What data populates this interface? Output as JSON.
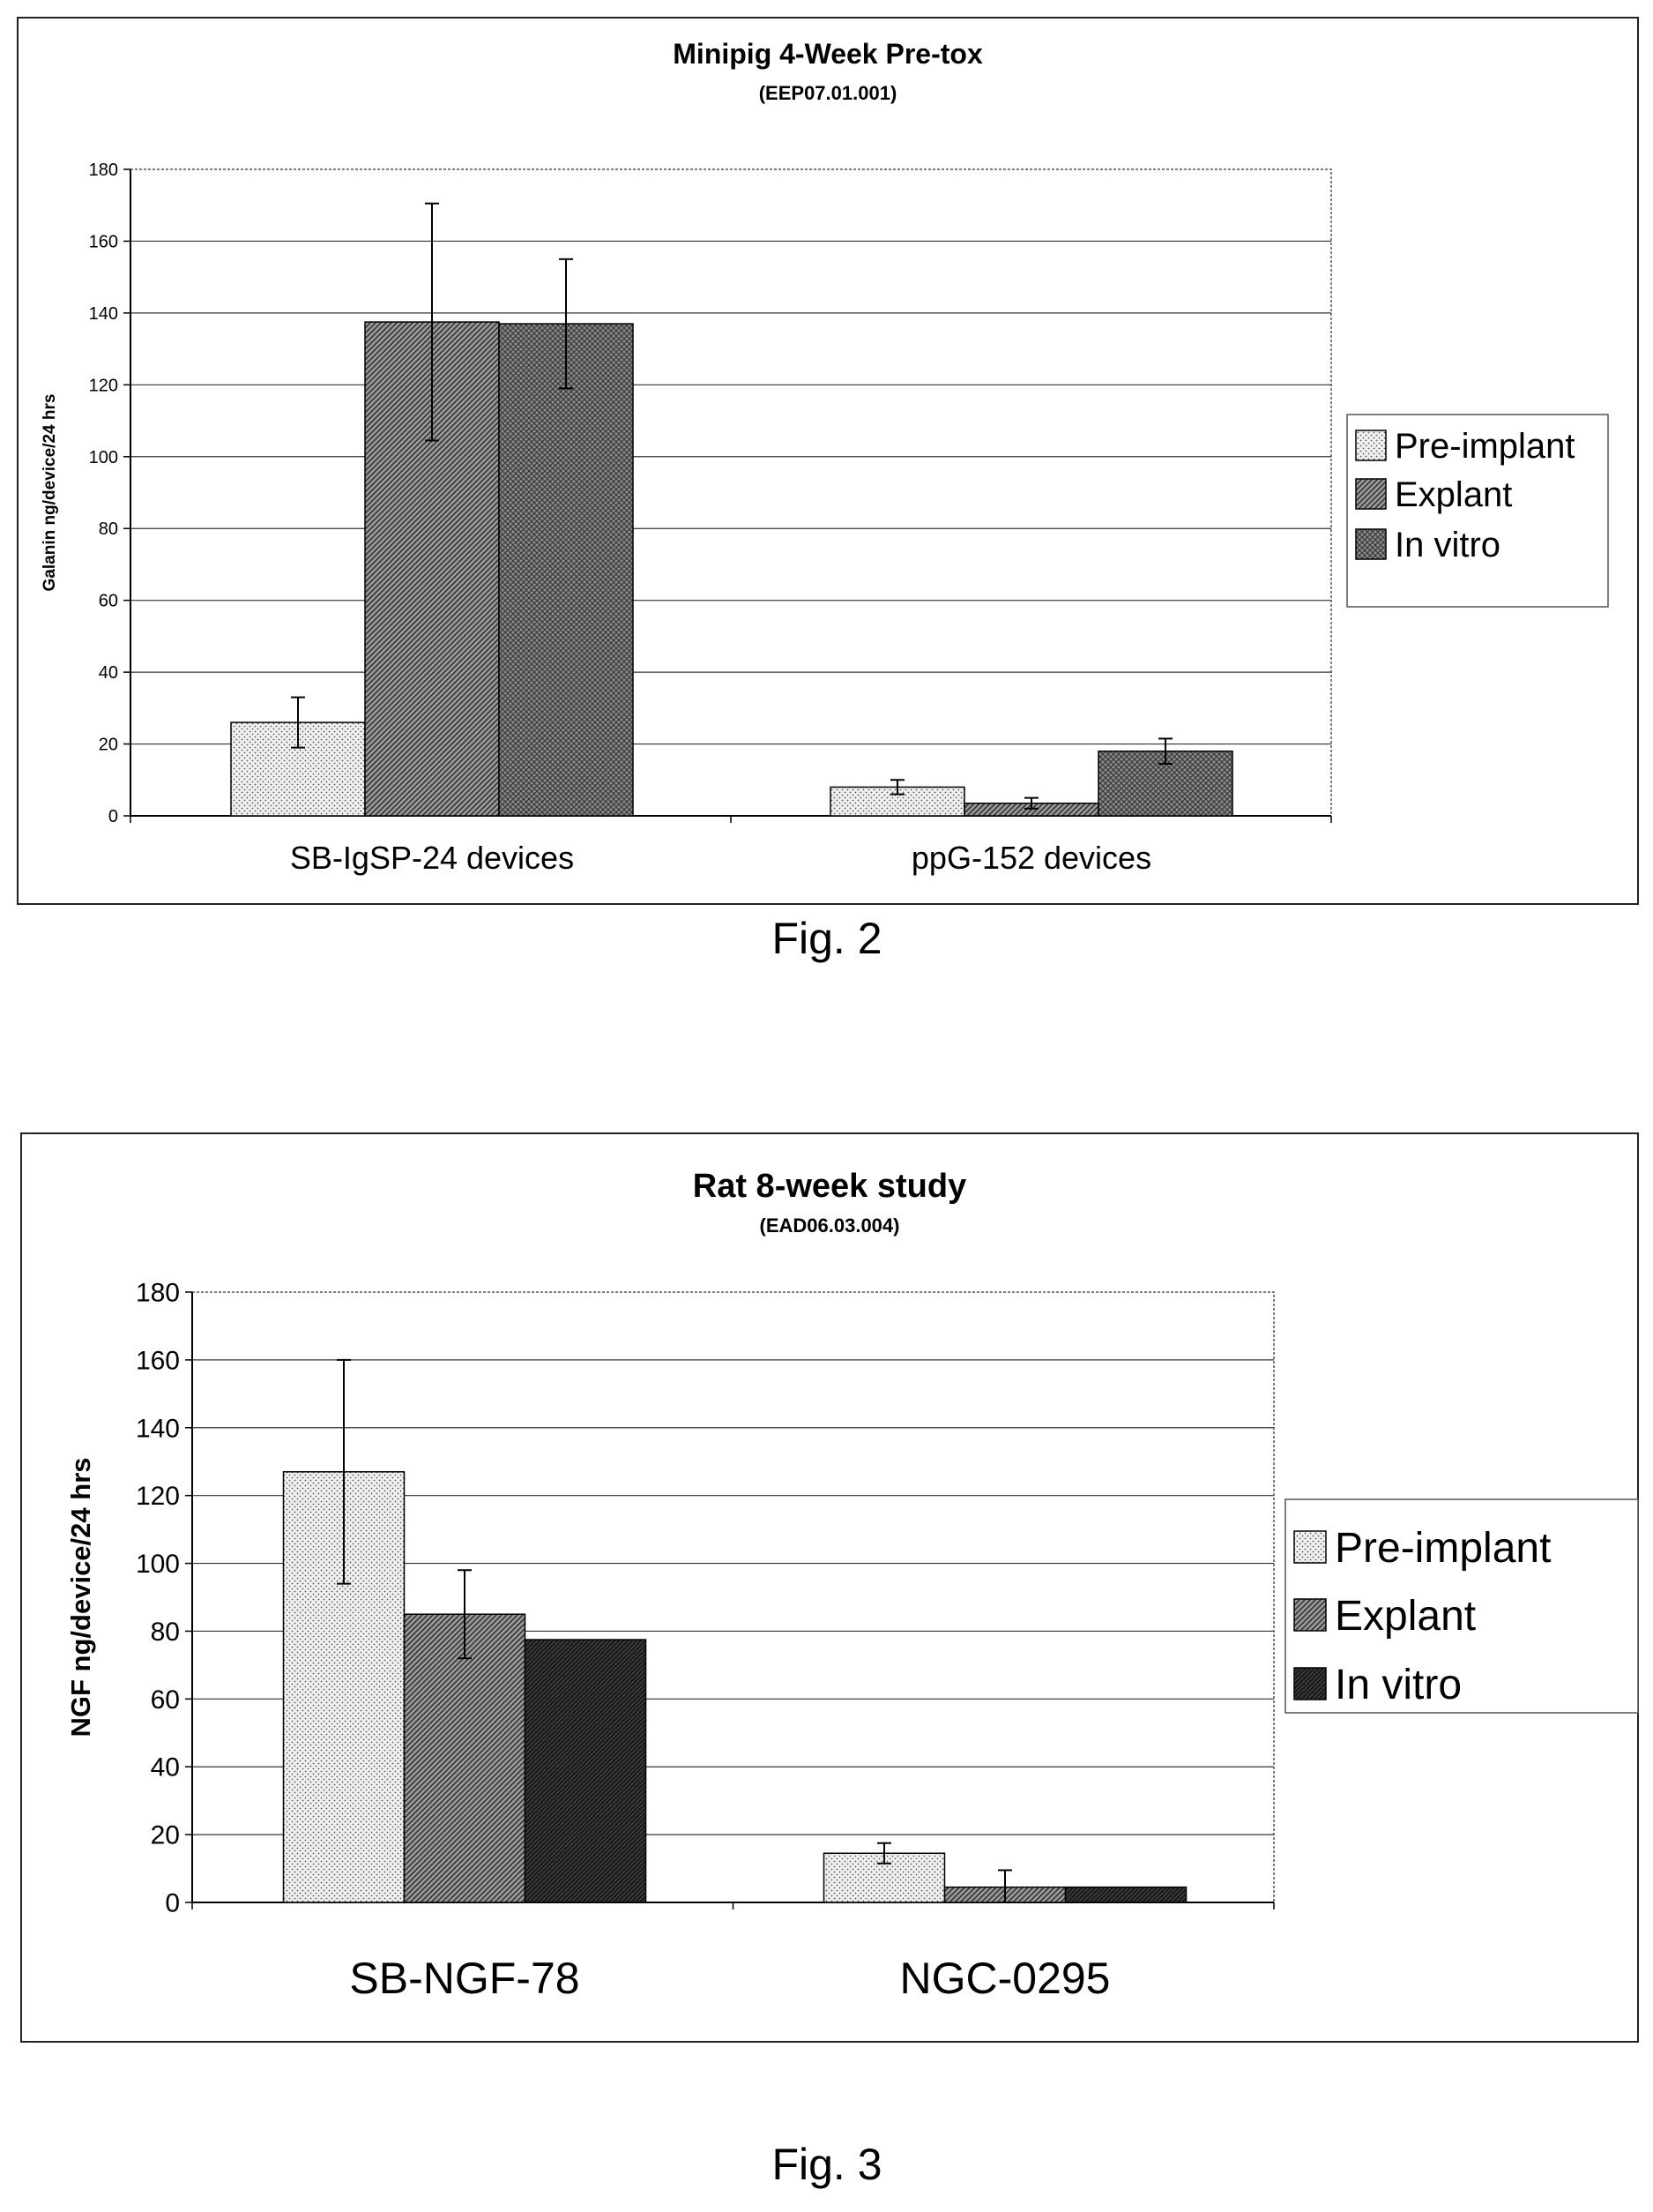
{
  "figures": [
    {
      "caption": "Fig. 2",
      "chart_data": {
        "type": "bar",
        "title": "Minipig 4-Week Pre-tox",
        "subtitle": "(EEP07.01.001)",
        "ylabel": "Galanin ng/device/24 hrs",
        "xlabel": "",
        "ylim": [
          0,
          180
        ],
        "yticks": [
          "0",
          "20",
          "40",
          "60",
          "80",
          "100",
          "120",
          "140",
          "160",
          "180"
        ],
        "categories": [
          "SB-IgSP-24 devices",
          "ppG-152 devices"
        ],
        "grid": true,
        "legend_position": "right",
        "series": [
          {
            "name": "Pre-implant",
            "values": [
              26,
              8
            ],
            "error": [
              7,
              2
            ],
            "fill": "dots"
          },
          {
            "name": "Explant",
            "values": [
              137.5,
              3.5
            ],
            "error": [
              33,
              1.5
            ],
            "fill": "diag"
          },
          {
            "name": "In vitro",
            "values": [
              137,
              18
            ],
            "error": [
              18,
              3.5
            ],
            "fill": "cross"
          }
        ]
      }
    },
    {
      "caption": "Fig. 3",
      "chart_data": {
        "type": "bar",
        "title": "Rat 8-week study",
        "subtitle": "(EAD06.03.004)",
        "ylabel": "NGF ng/device/24 hrs",
        "xlabel": "",
        "ylim": [
          0,
          180
        ],
        "yticks": [
          "0",
          "20",
          "40",
          "60",
          "80",
          "100",
          "120",
          "140",
          "160",
          "180"
        ],
        "categories": [
          "SB-NGF-78",
          "NGC-0295"
        ],
        "grid": true,
        "legend_position": "right",
        "series": [
          {
            "name": "Pre-implant",
            "values": [
              127,
              14.5
            ],
            "error": [
              33,
              3
            ],
            "fill": "dots"
          },
          {
            "name": "Explant",
            "values": [
              85,
              4.5
            ],
            "error": [
              13,
              5
            ],
            "fill": "diag"
          },
          {
            "name": "In vitro",
            "values": [
              77.5,
              4.5
            ],
            "error": [
              0,
              0
            ],
            "fill": "dark"
          }
        ]
      }
    }
  ]
}
